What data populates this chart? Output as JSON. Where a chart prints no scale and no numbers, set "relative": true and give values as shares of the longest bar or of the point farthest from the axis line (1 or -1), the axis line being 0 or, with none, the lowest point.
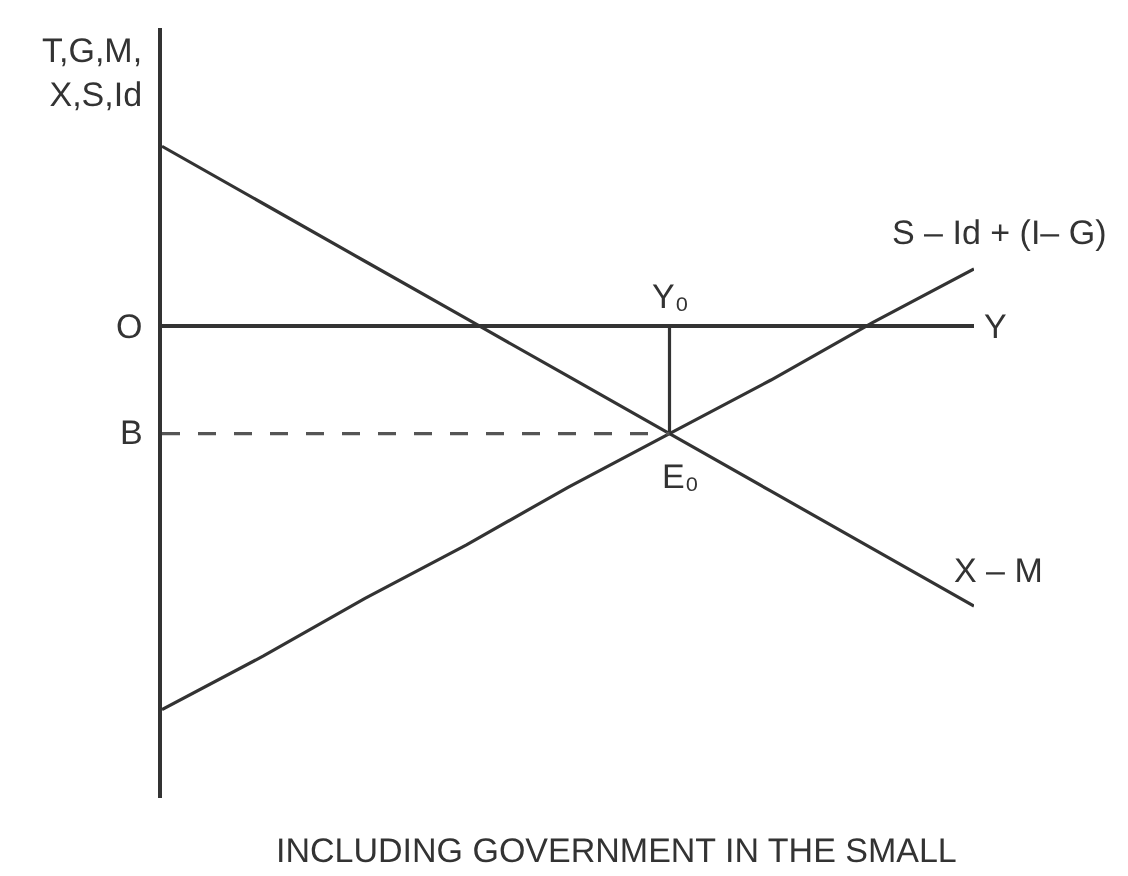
{
  "chart_data": {
    "type": "line",
    "relative": true,
    "ylabel": "T,G,M,\nX,S,Id",
    "xlabel": "Y",
    "categories": [
      null,
      null,
      null,
      null,
      null,
      null,
      null,
      null,
      null
    ],
    "series": [
      {
        "name": "X – M",
        "color": "#333333",
        "values": [
          0.47,
          0.32,
          0.17,
          0.02,
          -0.13,
          -0.28,
          -0.43,
          -0.58,
          -0.73
        ]
      },
      {
        "name": "S – Id + (I– G)",
        "color": "#333333",
        "values": [
          -1,
          -0.86,
          -0.71,
          -0.57,
          -0.42,
          -0.28,
          -0.14,
          0.01,
          0.15
        ]
      }
    ],
    "ref_lines": [
      {
        "axis": "y",
        "value": -0.28,
        "label": "B",
        "line_style": "dashed",
        "color": "#555555"
      }
    ],
    "annotations": [
      "O",
      {
        "text": "E₀",
        "y": -0.28
      },
      "Y₀",
      "INCLUDING GOVERNMENT IN THE SMALL"
    ]
  }
}
